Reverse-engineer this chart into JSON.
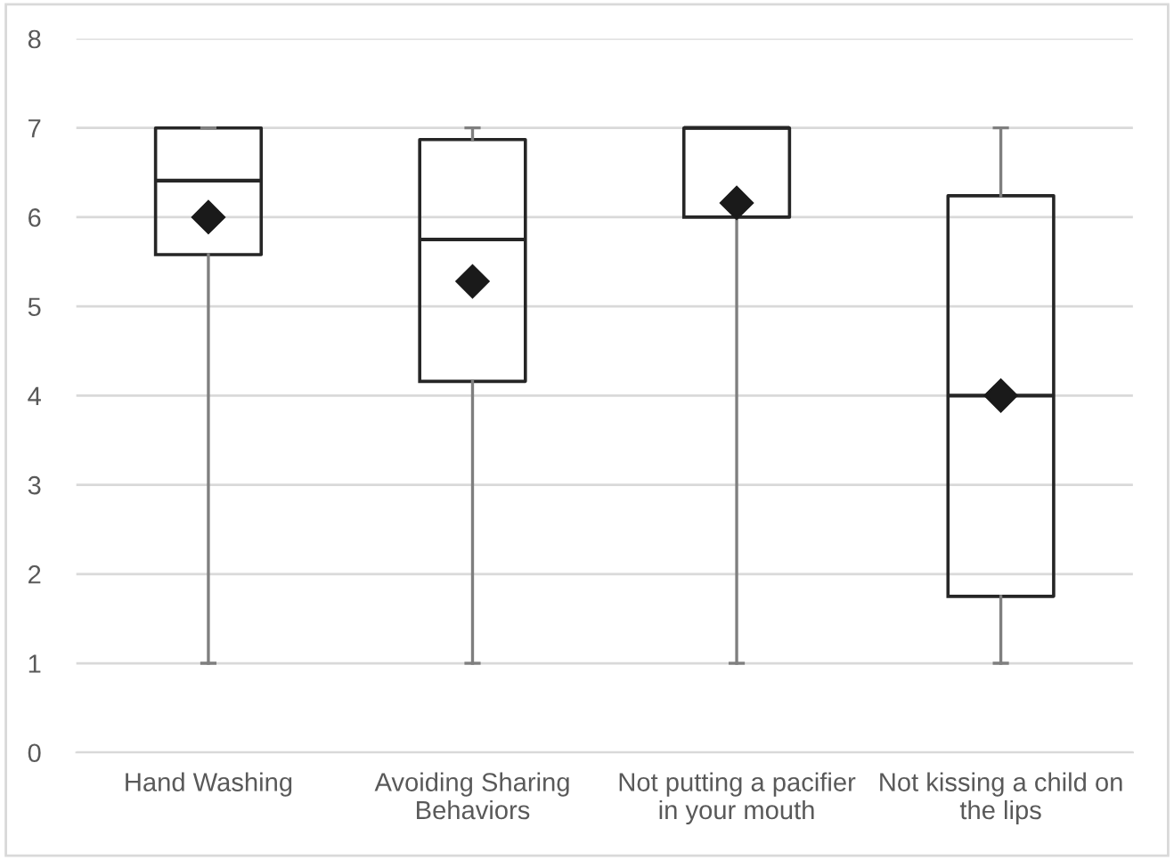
{
  "chart_data": {
    "type": "box",
    "categories": [
      "Hand Washing",
      "Avoiding Sharing\nBehaviors",
      "Not putting a pacifier\nin your mouth",
      "Not kissing a child on\nthe lips"
    ],
    "boxes": [
      {
        "low": 1,
        "q1": 5.58,
        "median": 6.41,
        "q3": 7,
        "high": 7,
        "mean": 6.0
      },
      {
        "low": 1,
        "q1": 4.16,
        "median": 5.75,
        "q3": 6.87,
        "high": 7,
        "mean": 5.28
      },
      {
        "low": 1,
        "q1": 6,
        "median": 7,
        "q3": 7,
        "high": 7,
        "mean": 6.16
      },
      {
        "low": 1,
        "q1": 1.75,
        "median": 4,
        "q3": 6.24,
        "high": 7,
        "mean": 4
      }
    ],
    "ylim": [
      0,
      8
    ],
    "yticks": [
      0,
      1,
      2,
      3,
      4,
      5,
      6,
      7,
      8
    ],
    "grid": "y",
    "marker": "diamond"
  }
}
